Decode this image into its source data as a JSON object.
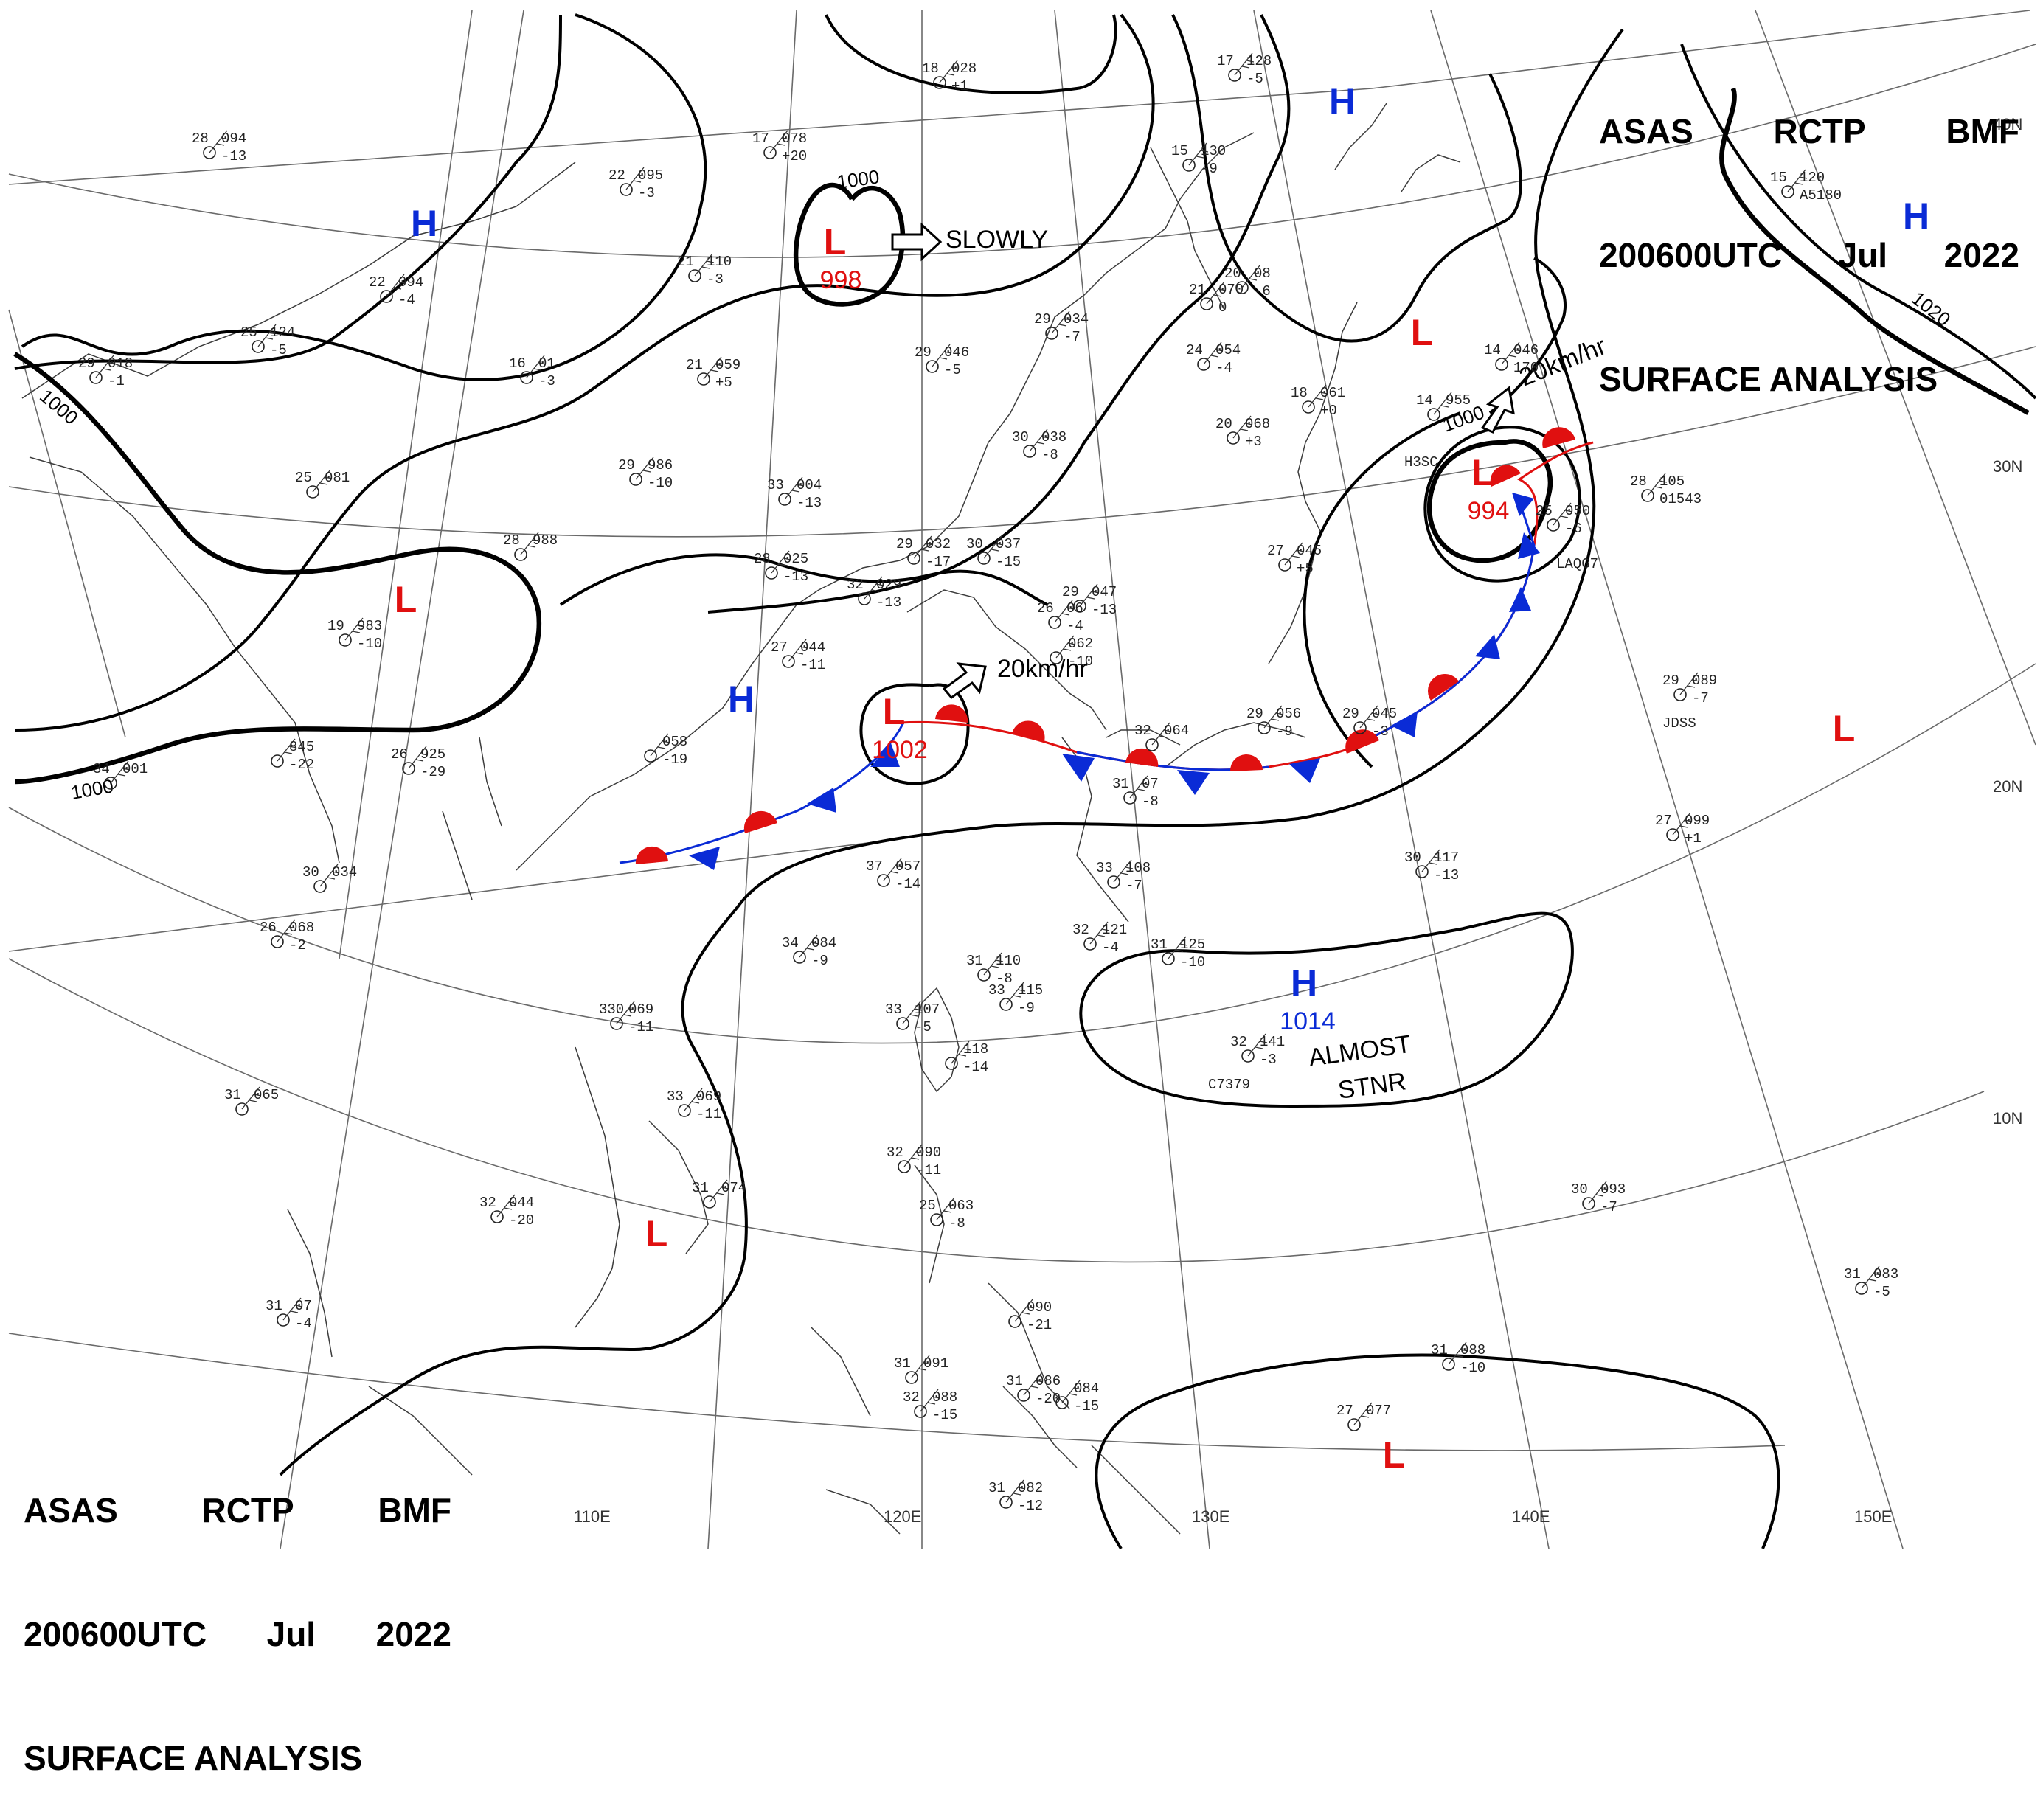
{
  "header_top_right": {
    "line1": [
      "ASAS",
      "RCTP",
      "BMF"
    ],
    "line2": [
      "200600UTC",
      "Jul",
      "2022"
    ],
    "line3": "SURFACE ANALYSIS"
  },
  "header_bottom_left": {
    "line1": [
      "ASAS",
      "RCTP",
      "BMF"
    ],
    "line2": [
      "200600UTC",
      "Jul",
      "2022"
    ],
    "line3": "SURFACE ANALYSIS"
  },
  "longitude_labels": [
    "110E",
    "120E",
    "130E",
    "140E",
    "150E"
  ],
  "latitude_labels": [
    "40N",
    "30N",
    "20N",
    "10N"
  ],
  "isobar_labels": [
    "1000",
    "1000",
    "1000",
    "1000",
    "1020"
  ],
  "pressure_systems": [
    {
      "type": "H",
      "value": ""
    },
    {
      "type": "L",
      "value": "998"
    },
    {
      "type": "H",
      "value": ""
    },
    {
      "type": "H",
      "value": ""
    },
    {
      "type": "L",
      "value": ""
    },
    {
      "type": "L",
      "value": ""
    },
    {
      "type": "H",
      "value": ""
    },
    {
      "type": "L",
      "value": "1002"
    },
    {
      "type": "L",
      "value": "994"
    },
    {
      "type": "L",
      "value": ""
    },
    {
      "type": "H",
      "value": "1014"
    },
    {
      "type": "L",
      "value": ""
    },
    {
      "type": "L",
      "value": ""
    }
  ],
  "movement_notes": [
    "SLOWLY",
    "20km/hr",
    "20km/hr",
    "ALMOST",
    "STNR"
  ],
  "colors": {
    "high": "#0a2bd6",
    "low": "#e01010",
    "cold_front": "#0a2bd6",
    "warm_front": "#e01010",
    "isobar": "#000000",
    "grid": "#555555",
    "coast": "#444444"
  },
  "stations": [
    {
      "temp": "28",
      "pres": "094",
      "tend": "-13"
    },
    {
      "temp": "22",
      "pres": "095",
      "tend": "-3"
    },
    {
      "temp": "17",
      "pres": "078",
      "tend": "+20"
    },
    {
      "temp": "18",
      "pres": "028",
      "tend": "+1"
    },
    {
      "temp": "22",
      "pres": "094",
      "tend": "-4"
    },
    {
      "temp": "21",
      "pres": "110",
      "tend": "-3"
    },
    {
      "temp": "25",
      "pres": "124",
      "tend": "-5"
    },
    {
      "temp": "29",
      "pres": "018",
      "tend": "-1"
    },
    {
      "temp": "16",
      "pres": "01",
      "tend": "-3"
    },
    {
      "temp": "21",
      "pres": "059",
      "tend": "+5"
    },
    {
      "temp": "29",
      "pres": "986",
      "tend": "-10"
    },
    {
      "temp": "25",
      "pres": "081",
      "tend": ""
    },
    {
      "temp": "28",
      "pres": "988",
      "tend": ""
    },
    {
      "temp": "19",
      "pres": "983",
      "tend": "-10"
    },
    {
      "temp": "33",
      "pres": "004",
      "tend": "-13"
    },
    {
      "temp": "28",
      "pres": "025",
      "tend": "-13"
    },
    {
      "temp": "32",
      "pres": "029",
      "tend": "-13"
    },
    {
      "temp": "29",
      "pres": "032",
      "tend": "-17"
    },
    {
      "temp": "30",
      "pres": "037",
      "tend": "-15"
    },
    {
      "temp": "29",
      "pres": "046",
      "tend": "-5"
    },
    {
      "temp": "29",
      "pres": "034",
      "tend": "-7"
    },
    {
      "temp": "30",
      "pres": "038",
      "tend": "-8"
    },
    {
      "temp": "27",
      "pres": "044",
      "tend": "-11"
    },
    {
      "temp": "29",
      "pres": "047",
      "tend": "-13"
    },
    {
      "temp": "26",
      "pres": "06",
      "tend": "-4"
    },
    {
      "temp": "",
      "pres": "062",
      "tend": "-10"
    },
    {
      "temp": "26",
      "pres": "925",
      "tend": "-29"
    },
    {
      "temp": "",
      "pres": "845",
      "tend": "-22"
    },
    {
      "temp": "34",
      "pres": "001",
      "tend": ""
    },
    {
      "temp": "",
      "pres": "058",
      "tend": "-19"
    },
    {
      "temp": "15",
      "pres": "130",
      "tend": "-9"
    },
    {
      "temp": "17",
      "pres": "128",
      "tend": "-5"
    },
    {
      "temp": "21",
      "pres": "070",
      "tend": "0"
    },
    {
      "temp": "20",
      "pres": "08",
      "tend": "-6"
    },
    {
      "temp": "24",
      "pres": "054",
      "tend": "-4"
    },
    {
      "temp": "20",
      "pres": "068",
      "tend": "+3"
    },
    {
      "temp": "18",
      "pres": "061",
      "tend": "+0"
    },
    {
      "temp": "14",
      "pres": "046",
      "tend": "170"
    },
    {
      "temp": "14",
      "pres": "955",
      "tend": ""
    },
    {
      "temp": "27",
      "pres": "045",
      "tend": "+5"
    },
    {
      "temp": "25",
      "pres": "050",
      "tend": "-6"
    },
    {
      "temp": "28",
      "pres": "105",
      "tend": "01543"
    },
    {
      "temp": "15",
      "pres": "120",
      "tend": "A5180"
    },
    {
      "temp": "29",
      "pres": "056",
      "tend": "-9"
    },
    {
      "temp": "29",
      "pres": "045",
      "tend": "-3"
    },
    {
      "temp": "32",
      "pres": "064",
      "tend": ""
    },
    {
      "temp": "31",
      "pres": "07",
      "tend": "-8"
    },
    {
      "temp": "29",
      "pres": "089",
      "tend": "-7"
    },
    {
      "temp": "27",
      "pres": "099",
      "tend": "+1"
    },
    {
      "temp": "30",
      "pres": "034",
      "tend": ""
    },
    {
      "temp": "26",
      "pres": "068",
      "tend": "-2"
    },
    {
      "temp": "37",
      "pres": "057",
      "tend": "-14"
    },
    {
      "temp": "34",
      "pres": "084",
      "tend": "-9"
    },
    {
      "temp": "31",
      "pres": "110",
      "tend": "-8"
    },
    {
      "temp": "33",
      "pres": "115",
      "tend": "-9"
    },
    {
      "temp": "33",
      "pres": "108",
      "tend": "-7"
    },
    {
      "temp": "32",
      "pres": "121",
      "tend": "-4"
    },
    {
      "temp": "31",
      "pres": "125",
      "tend": "-10"
    },
    {
      "temp": "30",
      "pres": "117",
      "tend": "-13"
    },
    {
      "temp": "330",
      "pres": "069",
      "tend": "-11"
    },
    {
      "temp": "33",
      "pres": "107",
      "tend": "-5"
    },
    {
      "temp": "",
      "pres": "118",
      "tend": "-14"
    },
    {
      "temp": "32",
      "pres": "141",
      "tend": "-3"
    },
    {
      "temp": "31",
      "pres": "065",
      "tend": ""
    },
    {
      "temp": "33",
      "pres": "069",
      "tend": "-11"
    },
    {
      "temp": "32",
      "pres": "044",
      "tend": "-20"
    },
    {
      "temp": "31",
      "pres": "074",
      "tend": ""
    },
    {
      "temp": "32",
      "pres": "090",
      "tend": "-11"
    },
    {
      "temp": "25",
      "pres": "063",
      "tend": "-8"
    },
    {
      "temp": "30",
      "pres": "093",
      "tend": "-7"
    },
    {
      "temp": "31",
      "pres": "07",
      "tend": "-4"
    },
    {
      "temp": "31",
      "pres": "083",
      "tend": "-5"
    },
    {
      "temp": "31",
      "pres": "088",
      "tend": "-10"
    },
    {
      "temp": "31",
      "pres": "091",
      "tend": ""
    },
    {
      "temp": "31",
      "pres": "086",
      "tend": "-20"
    },
    {
      "temp": "",
      "pres": "084",
      "tend": "-15"
    },
    {
      "temp": "32",
      "pres": "088",
      "tend": "-15"
    },
    {
      "temp": "27",
      "pres": "077",
      "tend": ""
    },
    {
      "temp": "31",
      "pres": "082",
      "tend": "-12"
    },
    {
      "temp": "",
      "pres": "090",
      "tend": "-21"
    }
  ],
  "station_ids": [
    "JDSS",
    "C7379",
    "LAQG7",
    "H3SC"
  ]
}
